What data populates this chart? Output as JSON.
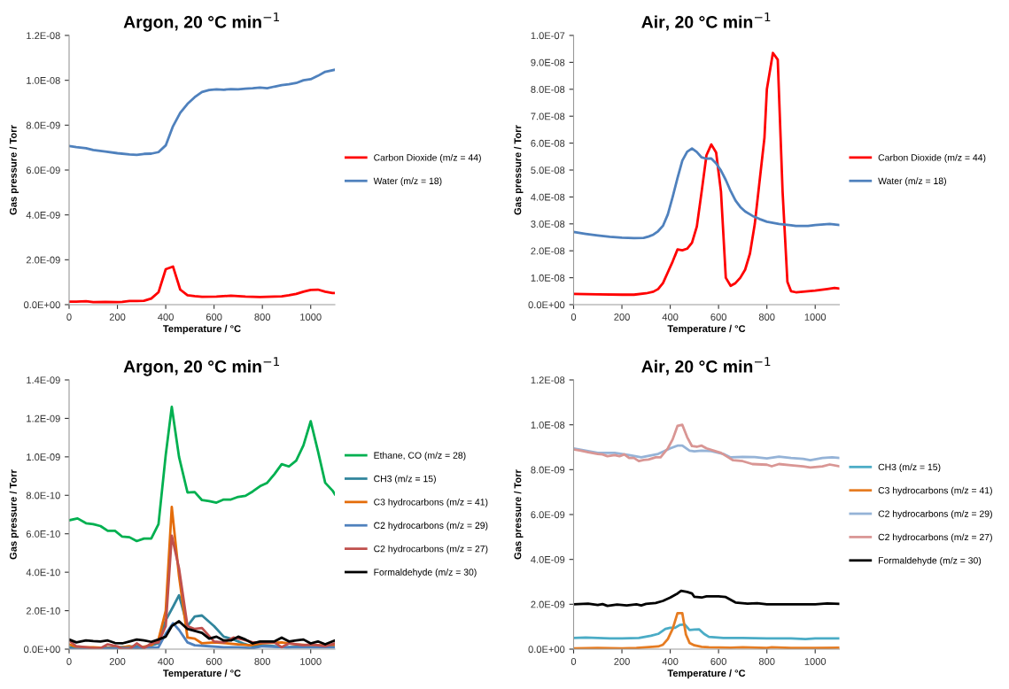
{
  "chart_data": [
    {
      "type": "line",
      "title": "Argon, 20 °C min$^{−1}$",
      "xlabel": "Temperature / °C",
      "ylabel": "Gas pressure / Torr",
      "xlim": [
        0,
        1100
      ],
      "xticks": [
        0,
        200,
        400,
        600,
        800,
        1000
      ],
      "ylim": [
        0,
        1.2e-08
      ],
      "yticks": [
        {
          "value": 0,
          "label": "0.0E+00"
        },
        {
          "value": 2e-09,
          "label": "2.0E-09"
        },
        {
          "value": 4e-09,
          "label": "4.0E-09"
        },
        {
          "value": 6e-09,
          "label": "6.0E-09"
        },
        {
          "value": 8e-09,
          "label": "8.0E-09"
        },
        {
          "value": 1e-08,
          "label": "1.0E-08"
        },
        {
          "value": 1.2e-08,
          "label": "1.2E-08"
        }
      ],
      "grid": false,
      "legend": "right",
      "marker": "none",
      "line_style": "solid",
      "series": [
        {
          "name": "Carbon Dioxide (m/z = 44)",
          "color": "#ff0000",
          "x": [
            0,
            30,
            70,
            100,
            150,
            200,
            220,
            250,
            280,
            310,
            340,
            370,
            400,
            430,
            460,
            490,
            520,
            550,
            610,
            670,
            730,
            790,
            820,
            880,
            910,
            940,
            970,
            1000,
            1030,
            1060,
            1090,
            1100
          ],
          "values": [
            1.3e-10,
            1.3e-10,
            1.5e-10,
            1.1e-10,
            1.2e-10,
            1.1e-10,
            1.2e-10,
            1.6e-10,
            1.6e-10,
            1.7e-10,
            2.7e-10,
            5.5e-10,
            1.58e-09,
            1.7e-09,
            6.7e-10,
            4.2e-10,
            3.8e-10,
            3.5e-10,
            3.6e-10,
            4e-10,
            3.6e-10,
            3.4e-10,
            3.5e-10,
            3.7e-10,
            4.2e-10,
            4.8e-10,
            5.8e-10,
            6.6e-10,
            6.7e-10,
            5.8e-10,
            5.2e-10,
            5.2e-10
          ]
        },
        {
          "name": "Water (m/z = 18)",
          "color": "#4f81bd",
          "x": [
            0,
            30,
            70,
            100,
            150,
            200,
            250,
            280,
            310,
            340,
            370,
            400,
            430,
            460,
            490,
            520,
            550,
            580,
            610,
            640,
            670,
            700,
            730,
            760,
            790,
            820,
            850,
            880,
            910,
            940,
            970,
            1000,
            1030,
            1060,
            1100
          ],
          "values": [
            7.07e-09,
            7.02e-09,
            6.97e-09,
            6.89e-09,
            6.82e-09,
            6.75e-09,
            6.7e-09,
            6.68e-09,
            6.72e-09,
            6.73e-09,
            6.8e-09,
            7.1e-09,
            7.95e-09,
            8.55e-09,
            8.95e-09,
            9.25e-09,
            9.48e-09,
            9.57e-09,
            9.6e-09,
            9.58e-09,
            9.61e-09,
            9.6e-09,
            9.63e-09,
            9.65e-09,
            9.68e-09,
            9.65e-09,
            9.72e-09,
            9.78e-09,
            9.82e-09,
            9.88e-09,
            1e-08,
            1.005e-08,
            1.02e-08,
            1.038e-08,
            1.047e-08
          ]
        }
      ]
    },
    {
      "type": "line",
      "title": "Air, 20 °C min$^{−1}$",
      "xlabel": "Temperature / °C",
      "ylabel": "Gas pressure / Torr",
      "xlim": [
        0,
        1100
      ],
      "xticks": [
        0,
        200,
        400,
        600,
        800,
        1000
      ],
      "ylim": [
        0,
        1e-07
      ],
      "yticks": [
        {
          "value": 0,
          "label": "0.0E+00"
        },
        {
          "value": 1e-08,
          "label": "1.0E-08"
        },
        {
          "value": 2e-08,
          "label": "2.0E-08"
        },
        {
          "value": 3e-08,
          "label": "3.0E-08"
        },
        {
          "value": 4e-08,
          "label": "4.0E-08"
        },
        {
          "value": 5e-08,
          "label": "5.0E-08"
        },
        {
          "value": 6e-08,
          "label": "6.0E-08"
        },
        {
          "value": 7e-08,
          "label": "7.0E-08"
        },
        {
          "value": 8e-08,
          "label": "8.0E-08"
        },
        {
          "value": 9e-08,
          "label": "9.0E-08"
        },
        {
          "value": 1e-07,
          "label": "1.0E-07"
        }
      ],
      "grid": false,
      "legend": "right",
      "marker": "none",
      "line_style": "solid",
      "series": [
        {
          "name": "Carbon Dioxide (m/z = 44)",
          "color": "#ff0000",
          "x": [
            0,
            100,
            200,
            250,
            300,
            330,
            350,
            370,
            390,
            410,
            430,
            450,
            470,
            490,
            510,
            530,
            550,
            570,
            590,
            610,
            630,
            650,
            670,
            690,
            710,
            730,
            750,
            770,
            790,
            800,
            825,
            845,
            865,
            885,
            900,
            920,
            1000,
            1050,
            1080,
            1100
          ],
          "values": [
            4e-09,
            3.8e-09,
            3.7e-09,
            3.7e-09,
            4.2e-09,
            4.8e-09,
            5.8e-09,
            8e-09,
            1.2e-08,
            1.6e-08,
            2.05e-08,
            2.02e-08,
            2.08e-08,
            2.3e-08,
            2.9e-08,
            4.2e-08,
            5.55e-08,
            5.95e-08,
            5.65e-08,
            4.2e-08,
            1e-08,
            7e-09,
            8e-09,
            1e-08,
            1.3e-08,
            1.9e-08,
            3e-08,
            4.6e-08,
            6.2e-08,
            8e-08,
            9.35e-08,
            9.1e-08,
            4.2e-08,
            8.5e-09,
            5e-09,
            4.6e-09,
            5.2e-09,
            5.8e-09,
            6.2e-09,
            6e-09
          ]
        },
        {
          "name": "Water (m/z = 18)",
          "color": "#4f81bd",
          "x": [
            0,
            50,
            100,
            150,
            200,
            250,
            290,
            310,
            330,
            350,
            370,
            390,
            410,
            430,
            450,
            470,
            490,
            510,
            530,
            550,
            570,
            590,
            610,
            630,
            650,
            670,
            690,
            710,
            740,
            770,
            800,
            850,
            900,
            920,
            970,
            1000,
            1060,
            1100
          ],
          "values": [
            2.7e-08,
            2.63e-08,
            2.57e-08,
            2.52e-08,
            2.49e-08,
            2.47e-08,
            2.48e-08,
            2.53e-08,
            2.6e-08,
            2.73e-08,
            2.93e-08,
            3.35e-08,
            4e-08,
            4.7e-08,
            5.35e-08,
            5.68e-08,
            5.8e-08,
            5.67e-08,
            5.47e-08,
            5.42e-08,
            5.43e-08,
            5.25e-08,
            4.98e-08,
            4.63e-08,
            4.22e-08,
            3.87e-08,
            3.63e-08,
            3.46e-08,
            3.3e-08,
            3.18e-08,
            3.08e-08,
            3e-08,
            2.95e-08,
            2.92e-08,
            2.92e-08,
            2.96e-08,
            3e-08,
            2.96e-08
          ]
        }
      ]
    },
    {
      "type": "line",
      "title": "Argon, 20 °C min$^{−1}$",
      "xlabel": "Temperature / °C",
      "ylabel": "Gas pressure / Torr",
      "xlim": [
        0,
        1100
      ],
      "xticks": [
        0,
        200,
        400,
        600,
        800,
        1000
      ],
      "ylim": [
        0,
        1.4e-09
      ],
      "yticks": [
        {
          "value": 0,
          "label": "0.0E+00"
        },
        {
          "value": 2e-10,
          "label": "2.0E-10"
        },
        {
          "value": 4e-10,
          "label": "4.0E-10"
        },
        {
          "value": 6e-10,
          "label": "6.0E-10"
        },
        {
          "value": 8e-10,
          "label": "8.0E-10"
        },
        {
          "value": 1e-09,
          "label": "1.0E-09"
        },
        {
          "value": 1.2e-09,
          "label": "1.2E-09"
        },
        {
          "value": 1.4e-09,
          "label": "1.4E-09"
        }
      ],
      "grid": false,
      "legend": "right",
      "marker": "none",
      "line_style": "solid",
      "series": [
        {
          "name": "Ethane, CO (m/z = 28)",
          "color": "#00b050",
          "x": [
            0,
            35,
            70,
            100,
            130,
            160,
            190,
            220,
            250,
            280,
            310,
            340,
            370,
            400,
            425,
            455,
            490,
            520,
            550,
            580,
            610,
            640,
            670,
            700,
            730,
            760,
            790,
            820,
            850,
            880,
            910,
            940,
            970,
            1000,
            1030,
            1060,
            1090,
            1100
          ],
          "values": [
            6.7e-10,
            6.8e-10,
            6.55e-10,
            6.5e-10,
            6.4e-10,
            6.15e-10,
            6.15e-10,
            5.85e-10,
            5.82e-10,
            5.62e-10,
            5.75e-10,
            5.75e-10,
            6.5e-10,
            1.01e-09,
            1.26e-09,
            1e-09,
            8.15e-10,
            8.17e-10,
            7.75e-10,
            7.7e-10,
            7.62e-10,
            7.78e-10,
            7.78e-10,
            7.92e-10,
            7.97e-10,
            8.2e-10,
            8.47e-10,
            8.65e-10,
            9.1e-10,
            9.62e-10,
            9.5e-10,
            9.8e-10,
            1.06e-09,
            1.185e-09,
            1.03e-09,
            8.65e-10,
            8.25e-10,
            8.05e-10
          ]
        },
        {
          "name": "CH3 (m/z = 15)",
          "color": "#31859c",
          "x": [
            0,
            100,
            200,
            280,
            300,
            370,
            400,
            430,
            455,
            490,
            520,
            550,
            600,
            640,
            680,
            720,
            760,
            800,
            850,
            900,
            1000,
            1100
          ],
          "values": [
            1e-11,
            5e-12,
            1e-11,
            1.5e-11,
            5e-12,
            3e-11,
            1.5e-10,
            2.2e-10,
            2.8e-10,
            1.2e-10,
            1.7e-10,
            1.75e-10,
            1.2e-10,
            6.5e-11,
            5e-11,
            3e-11,
            1.5e-11,
            2e-11,
            1.5e-11,
            1e-11,
            1.5e-11,
            1.5e-11
          ]
        },
        {
          "name": "C3 hydrocarbons (m/z = 41)",
          "color": "#e46c0a",
          "x": [
            0,
            30,
            100,
            160,
            220,
            250,
            280,
            340,
            370,
            400,
            425,
            455,
            490,
            520,
            550,
            600,
            650,
            700,
            750,
            800,
            880,
            940,
            1000,
            1100
          ],
          "values": [
            2.5e-11,
            1e-11,
            1e-11,
            5e-12,
            1e-11,
            1.5e-11,
            5e-12,
            2e-11,
            5e-11,
            2e-10,
            7.4e-10,
            3.8e-10,
            6e-11,
            5.5e-11,
            3e-11,
            3.5e-11,
            3e-11,
            2.5e-11,
            2e-11,
            3e-11,
            3.5e-11,
            2.5e-11,
            2e-11,
            2e-11
          ]
        },
        {
          "name": "C2 hydrocarbons (m/z = 29)",
          "color": "#4f81bd",
          "x": [
            0,
            100,
            200,
            370,
            400,
            430,
            455,
            490,
            520,
            580,
            640,
            700,
            760,
            800,
            900,
            1000,
            1100
          ],
          "values": [
            0,
            0,
            5e-12,
            1e-11,
            8e-11,
            1.35e-10,
            1e-10,
            3.5e-11,
            2e-11,
            1.5e-11,
            1e-11,
            1e-11,
            5e-12,
            1.5e-11,
            1e-11,
            1e-11,
            1e-11
          ]
        },
        {
          "name": "C2 hydrocarbons (m/z = 27)",
          "color": "#c0504d",
          "x": [
            0,
            30,
            70,
            100,
            130,
            160,
            200,
            220,
            250,
            280,
            310,
            340,
            370,
            400,
            425,
            455,
            490,
            520,
            550,
            600,
            640,
            680,
            720,
            760,
            800,
            850,
            880,
            910,
            970,
            1000,
            1060,
            1100
          ],
          "values": [
            4.5e-11,
            1.5e-11,
            1e-11,
            5e-12,
            5e-12,
            2.5e-11,
            1.5e-11,
            0,
            0,
            3e-11,
            5e-12,
            3e-11,
            3.5e-11,
            1.2e-10,
            5.9e-10,
            4.2e-10,
            1.2e-10,
            1.05e-10,
            1.1e-10,
            4e-11,
            3.5e-11,
            6e-11,
            5e-11,
            3.5e-11,
            3.5e-11,
            3.5e-11,
            1e-11,
            3e-11,
            2e-11,
            2.5e-11,
            1.5e-11,
            3e-11
          ]
        },
        {
          "name": "Formaldehyde (m/z = 30)",
          "color": "#000000",
          "x": [
            0,
            30,
            70,
            100,
            130,
            160,
            190,
            220,
            250,
            280,
            310,
            340,
            370,
            400,
            425,
            455,
            490,
            520,
            550,
            580,
            610,
            640,
            670,
            700,
            730,
            760,
            790,
            850,
            880,
            910,
            940,
            970,
            1000,
            1030,
            1060,
            1090,
            1100
          ],
          "values": [
            5e-11,
            3.5e-11,
            4.5e-11,
            4.2e-11,
            4e-11,
            4.5e-11,
            3.2e-11,
            3e-11,
            4e-11,
            5e-11,
            4.5e-11,
            3.8e-11,
            5e-11,
            6.5e-11,
            1.2e-10,
            1.45e-10,
            1.05e-10,
            9.5e-11,
            8.5e-11,
            5.5e-11,
            6.5e-11,
            4.5e-11,
            4.5e-11,
            6.5e-11,
            5e-11,
            3e-11,
            4e-11,
            4e-11,
            6e-11,
            4e-11,
            4.5e-11,
            5e-11,
            3e-11,
            4e-11,
            2.5e-11,
            4e-11,
            4.5e-11
          ]
        }
      ]
    },
    {
      "type": "line",
      "title": "Air, 20 °C min$^{−1}$",
      "xlabel": "Temperature / °C",
      "ylabel": "Gas pressure / Torr",
      "xlim": [
        0,
        1100
      ],
      "xticks": [
        0,
        200,
        400,
        600,
        800,
        1000
      ],
      "ylim": [
        0,
        1.2e-08
      ],
      "yticks": [
        {
          "value": 0,
          "label": "0.0E+00"
        },
        {
          "value": 2e-09,
          "label": "2.0E-09"
        },
        {
          "value": 4e-09,
          "label": "4.0E-09"
        },
        {
          "value": 6e-09,
          "label": "6.0E-09"
        },
        {
          "value": 8e-09,
          "label": "8.0E-09"
        },
        {
          "value": 1e-08,
          "label": "1.0E-08"
        },
        {
          "value": 1.2e-08,
          "label": "1.2E-08"
        }
      ],
      "grid": false,
      "legend": "right",
      "marker": "none",
      "line_style": "solid",
      "series": [
        {
          "name": "CH3 (m/z = 15)",
          "color": "#4bacc6",
          "x": [
            0,
            50,
            100,
            150,
            200,
            270,
            320,
            350,
            380,
            400,
            420,
            440,
            460,
            480,
            500,
            520,
            540,
            560,
            620,
            700,
            800,
            900,
            960,
            1000,
            1100
          ],
          "values": [
            5e-10,
            5.2e-10,
            5e-10,
            4.8e-10,
            4.8e-10,
            5e-10,
            6e-10,
            6.8e-10,
            9e-10,
            9.5e-10,
            9.5e-10,
            1.08e-09,
            1.1e-09,
            8.5e-10,
            8.7e-10,
            8.8e-10,
            6.8e-10,
            5.5e-10,
            5e-10,
            5e-10,
            4.8e-10,
            4.8e-10,
            4.5e-10,
            4.8e-10,
            4.8e-10
          ]
        },
        {
          "name": "C3 hydrocarbons (m/z = 41)",
          "color": "#e67c22",
          "x": [
            0,
            100,
            200,
            260,
            300,
            350,
            370,
            390,
            410,
            430,
            450,
            465,
            480,
            500,
            530,
            560,
            650,
            700,
            800,
            820,
            900,
            1000,
            1100
          ],
          "values": [
            3e-11,
            5e-11,
            3e-11,
            5e-11,
            8e-11,
            1.2e-10,
            2e-10,
            4.5e-10,
            9e-10,
            1.6e-09,
            1.6e-09,
            6.5e-10,
            2.8e-10,
            1.7e-10,
            1e-10,
            8e-11,
            6e-11,
            8e-11,
            5e-11,
            8e-11,
            5e-11,
            5e-11,
            6e-11
          ]
        },
        {
          "name": "C2 hydrocarbons (m/z = 29)",
          "color": "#95b3d7",
          "x": [
            0,
            50,
            100,
            170,
            230,
            280,
            350,
            400,
            430,
            450,
            480,
            500,
            530,
            570,
            620,
            650,
            700,
            750,
            800,
            850,
            900,
            950,
            980,
            1030,
            1070,
            1100
          ],
          "values": [
            8.95e-09,
            8.85e-09,
            8.75e-09,
            8.75e-09,
            8.65e-09,
            8.55e-09,
            8.7e-09,
            8.95e-09,
            9.07e-09,
            9.07e-09,
            8.85e-09,
            8.82e-09,
            8.85e-09,
            8.83e-09,
            8.7e-09,
            8.55e-09,
            8.57e-09,
            8.56e-09,
            8.5e-09,
            8.58e-09,
            8.52e-09,
            8.48e-09,
            8.42e-09,
            8.52e-09,
            8.55e-09,
            8.52e-09
          ]
        },
        {
          "name": "C2 hydrocarbons (m/z = 27)",
          "color": "#d99694",
          "x": [
            0,
            30,
            60,
            100,
            120,
            140,
            170,
            190,
            210,
            230,
            250,
            270,
            290,
            310,
            340,
            360,
            390,
            410,
            430,
            450,
            470,
            490,
            510,
            530,
            550,
            580,
            610,
            640,
            660,
            700,
            740,
            800,
            820,
            850,
            900,
            950,
            980,
            1030,
            1060,
            1100
          ],
          "values": [
            8.9e-09,
            8.85e-09,
            8.78e-09,
            8.7e-09,
            8.68e-09,
            8.6e-09,
            8.65e-09,
            8.6e-09,
            8.68e-09,
            8.52e-09,
            8.52e-09,
            8.38e-09,
            8.43e-09,
            8.45e-09,
            8.55e-09,
            8.55e-09,
            8.95e-09,
            9.35e-09,
            9.95e-09,
            1e-08,
            9.45e-09,
            9.05e-09,
            9.02e-09,
            9.07e-09,
            8.95e-09,
            8.85e-09,
            8.75e-09,
            8.55e-09,
            8.42e-09,
            8.38e-09,
            8.25e-09,
            8.22e-09,
            8.15e-09,
            8.25e-09,
            8.2e-09,
            8.15e-09,
            8.1e-09,
            8.15e-09,
            8.23e-09,
            8.15e-09
          ]
        },
        {
          "name": "Formaldehyde (m/z = 30)",
          "color": "#000000",
          "x": [
            0,
            60,
            100,
            120,
            140,
            180,
            220,
            260,
            280,
            300,
            340,
            370,
            400,
            430,
            445,
            470,
            490,
            500,
            530,
            550,
            600,
            630,
            670,
            720,
            760,
            800,
            900,
            1000,
            1050,
            1100
          ],
          "values": [
            2e-09,
            2.03e-09,
            1.97e-09,
            2.01e-09,
            1.93e-09,
            1.99e-09,
            1.95e-09,
            2e-09,
            1.95e-09,
            2.02e-09,
            2.06e-09,
            2.15e-09,
            2.3e-09,
            2.48e-09,
            2.6e-09,
            2.55e-09,
            2.48e-09,
            2.33e-09,
            2.3e-09,
            2.35e-09,
            2.35e-09,
            2.32e-09,
            2.08e-09,
            2.03e-09,
            2.05e-09,
            2e-09,
            2e-09,
            2e-09,
            2.04e-09,
            2.02e-09
          ]
        }
      ]
    }
  ]
}
